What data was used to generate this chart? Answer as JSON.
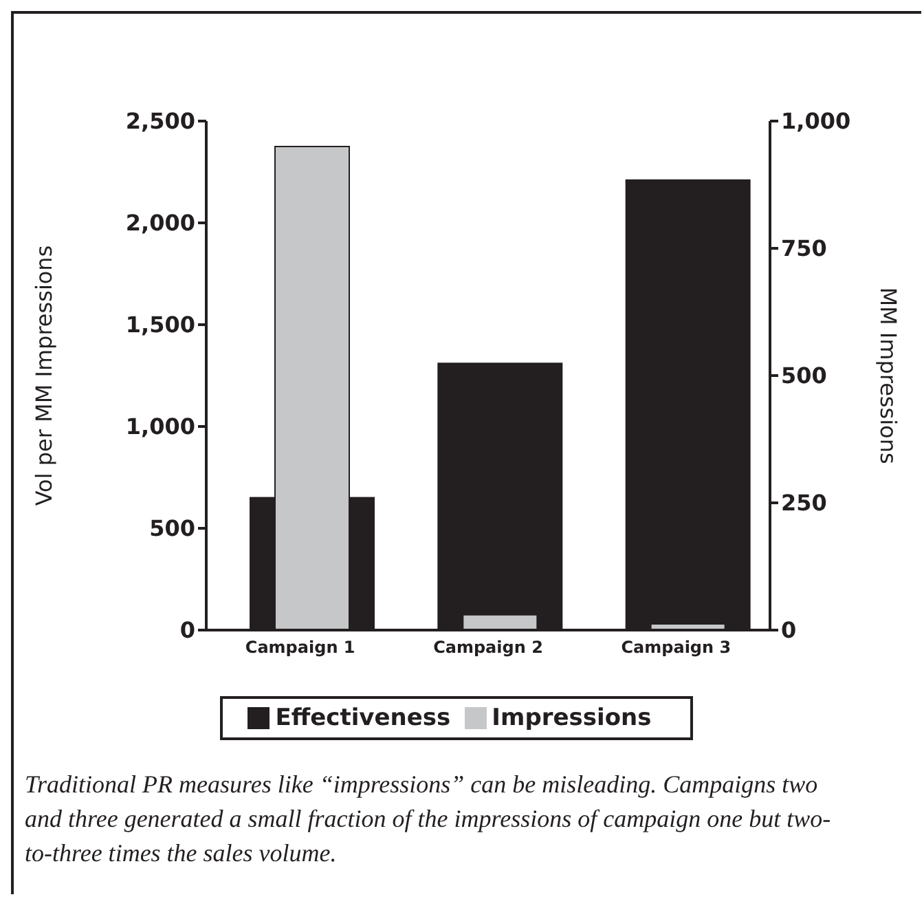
{
  "chart_data": {
    "type": "bar",
    "categories": [
      "Campaign 1",
      "Campaign 2",
      "Campaign 3"
    ],
    "ylabel": "Vol per MM Impressions",
    "y2label": "MM Impressions",
    "ylim": [
      0,
      2500
    ],
    "yticks": [
      {
        "value": 0,
        "label": "0"
      },
      {
        "value": 500,
        "label": "500"
      },
      {
        "value": 1000,
        "label": "1,000"
      },
      {
        "value": 1500,
        "label": "1,500"
      },
      {
        "value": 2000,
        "label": "2,000"
      },
      {
        "value": 2500,
        "label": "2,500"
      }
    ],
    "y2lim": [
      0,
      1000
    ],
    "y2ticks": [
      {
        "value": 0,
        "label": "0"
      },
      {
        "value": 250,
        "label": "250"
      },
      {
        "value": 500,
        "label": "500"
      },
      {
        "value": 750,
        "label": "750"
      },
      {
        "value": 1000,
        "label": "1,000"
      }
    ],
    "series": [
      {
        "name": "Effectiveness",
        "color": "#231f20",
        "values": [
          650,
          1310,
          2210
        ]
      },
      {
        "name": "Impressions",
        "color": "#c6c7c9",
        "values": [
          950,
          30,
          12
        ],
        "axis": "y2"
      }
    ],
    "legend": "bottom",
    "grid": false,
    "annotations": [
      "Traditional PR measures like “impressions” can be misleading. Campaigns two and three generated a small fraction of the impressions of campaign one but two-to-three times the sales volume."
    ]
  }
}
